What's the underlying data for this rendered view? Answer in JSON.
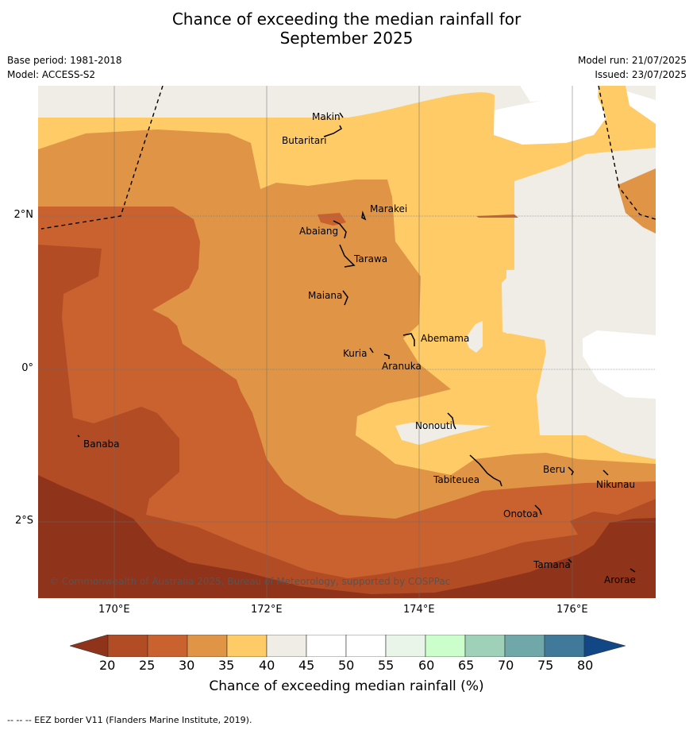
{
  "title": "Chance of exceeding the median rainfall for\nSeptember 2025",
  "meta_left": [
    "Base period: 1981-2018",
    "Model: ACCESS-S2"
  ],
  "meta_right": [
    "Model run: 21/07/2025",
    "Issued: 23/07/2025"
  ],
  "lat_labels": [
    "2°N",
    "0°",
    "2°S"
  ],
  "lon_labels": [
    "170°E",
    "172°E",
    "174°E",
    "176°E"
  ],
  "places": [
    "Makin",
    "Butaritari",
    "Marakei",
    "Abaiang",
    "Tarawa",
    "Maiana",
    "Abemama",
    "Kuria",
    "Aranuka",
    "Nonouti",
    "Banaba",
    "Tabiteuea",
    "Beru",
    "Nikunau",
    "Onotoa",
    "Tamana",
    "Arorae"
  ],
  "copyright": "© Commonwealth of Australia 2025, Bureau of Meteorology, supported by COSPPac",
  "colorbar": {
    "ticks": [
      "20",
      "25",
      "30",
      "35",
      "40",
      "45",
      "50",
      "55",
      "60",
      "65",
      "70",
      "75",
      "80"
    ],
    "label": "Chance of exceeding median rainfall (%)",
    "colors": {
      "below20": "#8f331b",
      "20-25": "#b24c24",
      "25-30": "#c9622f",
      "30-35": "#e09446",
      "35-40": "#fecb66",
      "40-45": "#f0ede7",
      "45-50": "#ffffff",
      "50-55": "#ffffff",
      "55-60": "#e9f5e9",
      "60-65": "#ccfecc",
      "65-70": "#9fd0b8",
      "70-75": "#70a7a8",
      "75-80": "#40799a",
      "above80": "#114785"
    }
  },
  "footnote": "--  --  -- EEZ border V11 (Flanders Marine Institute, 2019)."
}
